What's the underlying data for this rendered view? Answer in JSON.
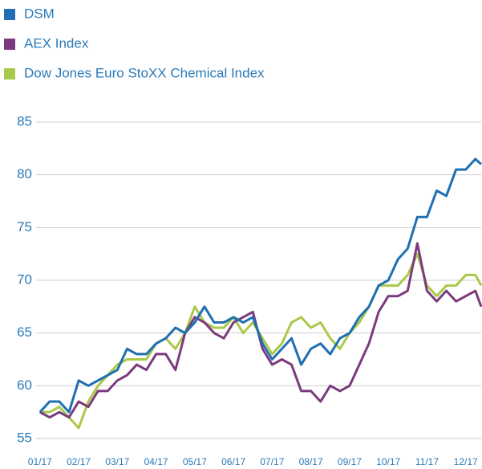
{
  "chart_data": {
    "type": "line",
    "x": [
      0,
      0.25,
      0.5,
      0.75,
      1,
      1.25,
      1.5,
      1.75,
      2,
      2.25,
      2.5,
      2.75,
      3,
      3.25,
      3.5,
      3.75,
      4,
      4.25,
      4.5,
      4.75,
      5,
      5.25,
      5.5,
      5.75,
      6,
      6.25,
      6.5,
      6.75,
      7,
      7.25,
      7.5,
      7.75,
      8,
      8.25,
      8.5,
      8.75,
      9,
      9.25,
      9.5,
      9.75,
      10,
      10.25,
      10.5,
      10.75,
      11,
      11.25,
      11.4
    ],
    "series": [
      {
        "name": "DSM",
        "color": "#1f6fb2",
        "values": [
          57.5,
          58.5,
          58.5,
          57.5,
          60.5,
          60,
          60.5,
          61,
          61.5,
          63.5,
          63,
          63,
          64,
          64.5,
          65.5,
          65,
          66,
          67.5,
          66,
          66,
          66.5,
          66,
          66.5,
          64,
          62.5,
          63.5,
          64.5,
          62,
          63.5,
          64,
          63,
          64.5,
          65,
          66.5,
          67.5,
          69.5,
          70,
          72,
          73,
          76,
          76,
          78.5,
          78,
          80.5,
          80.5,
          81.5,
          81
        ]
      },
      {
        "name": "AEX Index",
        "color": "#7b3a7e",
        "values": [
          57.5,
          57,
          57.5,
          57,
          58.5,
          58,
          59.5,
          59.5,
          60.5,
          61,
          62,
          61.5,
          63,
          63,
          61.5,
          65,
          66.5,
          66,
          65,
          64.5,
          66,
          66.5,
          67,
          63.5,
          62,
          62.5,
          62,
          59.5,
          59.5,
          58.5,
          60,
          59.5,
          60,
          62,
          64,
          67,
          68.5,
          68.5,
          69,
          73.5,
          69,
          68,
          69,
          68,
          68.5,
          69,
          67.5
        ]
      },
      {
        "name": "Dow Jones Euro StoXX Chemical Index",
        "color": "#a9c94a",
        "values": [
          57.5,
          57.5,
          58,
          57,
          56,
          58.5,
          60,
          61,
          62,
          62.5,
          62.5,
          62.5,
          64,
          64.5,
          63.5,
          65,
          67.5,
          66,
          65.5,
          65.5,
          66.5,
          65,
          66,
          64.5,
          63,
          64,
          66,
          66.5,
          65.5,
          66,
          64.5,
          63.5,
          65,
          66,
          67.5,
          69.5,
          69.5,
          69.5,
          70.5,
          72.5,
          69.5,
          68.5,
          69.5,
          69.5,
          70.5,
          70.5,
          69.5
        ]
      }
    ],
    "xlim": [
      -0.1,
      11.4
    ],
    "xticks": [
      {
        "value": 0,
        "label": "01/17"
      },
      {
        "value": 1,
        "label": "02/17"
      },
      {
        "value": 2,
        "label": "03/17"
      },
      {
        "value": 3,
        "label": "04/17"
      },
      {
        "value": 4,
        "label": "05/17"
      },
      {
        "value": 5,
        "label": "06/17"
      },
      {
        "value": 6,
        "label": "07/17"
      },
      {
        "value": 7,
        "label": "08/17"
      },
      {
        "value": 8,
        "label": "09/17"
      },
      {
        "value": 9,
        "label": "10/17"
      },
      {
        "value": 10,
        "label": "11/17"
      },
      {
        "value": 11,
        "label": "12/17"
      }
    ],
    "ylim": [
      55,
      85
    ],
    "yticks": [
      55,
      60,
      65,
      70,
      75,
      80,
      85
    ],
    "grid": true
  }
}
